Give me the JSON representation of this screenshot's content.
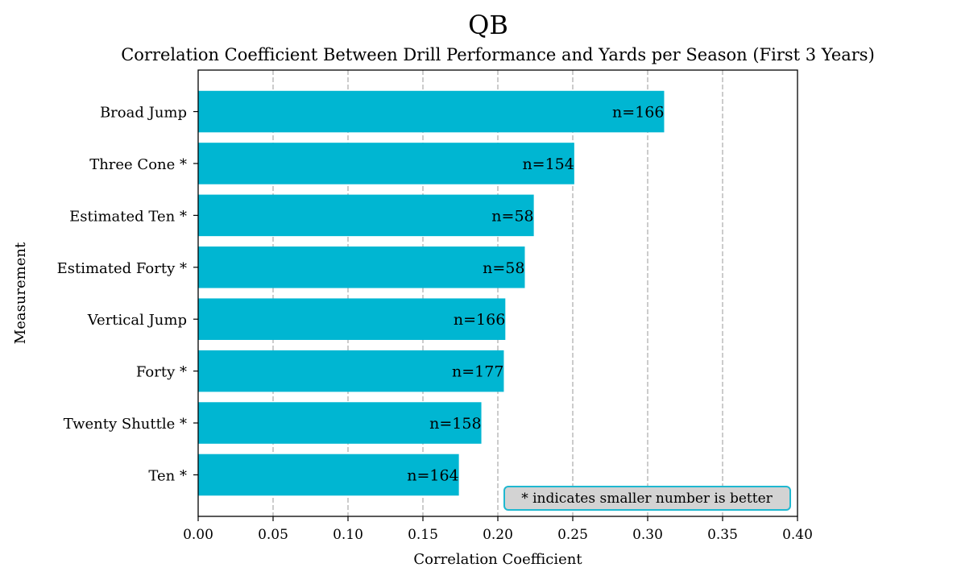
{
  "chart_data": {
    "type": "bar",
    "orientation": "horizontal",
    "title": "QB",
    "subtitle": "Correlation Coefficient Between Drill Performance and Yards per Season (First 3 Years)",
    "xlabel": "Correlation Coefficient",
    "ylabel": "Measurement",
    "xlim": [
      0,
      0.4
    ],
    "xticks": [
      "0.00",
      "0.05",
      "0.10",
      "0.15",
      "0.20",
      "0.25",
      "0.30",
      "0.35",
      "0.40"
    ],
    "grid": "x-dashed",
    "categories": [
      "Ten *",
      "Twenty Shuttle *",
      "Forty *",
      "Vertical Jump",
      "Estimated Forty *",
      "Estimated Ten *",
      "Three Cone *",
      "Broad Jump"
    ],
    "values": [
      0.174,
      0.189,
      0.204,
      0.205,
      0.218,
      0.224,
      0.251,
      0.311
    ],
    "data_labels": [
      "n=164",
      "n=158",
      "n=177",
      "n=166",
      "n=58",
      "n=58",
      "n=154",
      "n=166"
    ],
    "bar_color": "#00b6d2",
    "annotation": "* indicates smaller number is better",
    "annotation_placement": "bottom-right"
  }
}
